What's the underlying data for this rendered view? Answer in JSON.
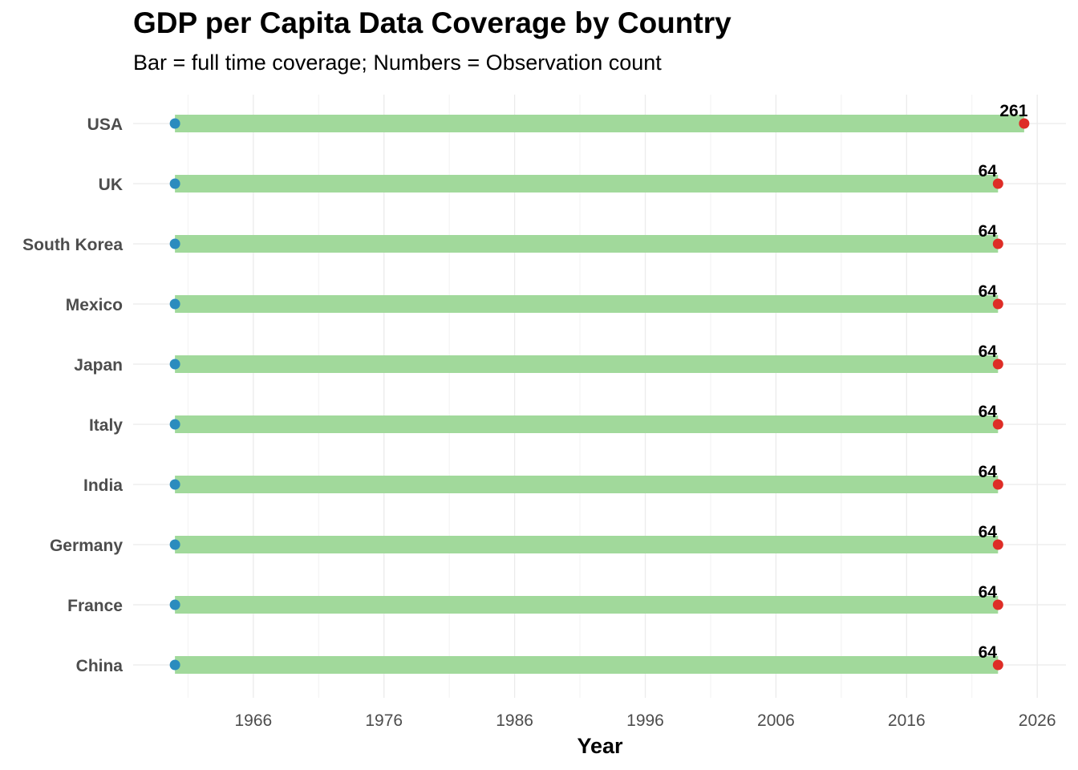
{
  "chart_data": {
    "type": "bar",
    "title": "GDP per Capita Data Coverage by Country",
    "subtitle": "Bar = full time coverage; Numbers = Observation count",
    "xlabel": "Year",
    "ylabel": "",
    "xlim": [
      1956.8,
      2028.2
    ],
    "x_ticks": [
      1966,
      1976,
      1986,
      1996,
      2006,
      2016,
      2026
    ],
    "grid": true,
    "legend": "none",
    "colors": {
      "bar": "#a1d99b",
      "start_point": "#2b8cbe",
      "end_point": "#de2d26",
      "grid": "#ebebeb"
    },
    "series": [
      {
        "country": "USA",
        "start": 1960.0,
        "end": 2025.0,
        "count": "261"
      },
      {
        "country": "UK",
        "start": 1960.0,
        "end": 2023.0,
        "count": "64"
      },
      {
        "country": "South Korea",
        "start": 1960.0,
        "end": 2023.0,
        "count": "64"
      },
      {
        "country": "Mexico",
        "start": 1960.0,
        "end": 2023.0,
        "count": "64"
      },
      {
        "country": "Japan",
        "start": 1960.0,
        "end": 2023.0,
        "count": "64"
      },
      {
        "country": "Italy",
        "start": 1960.0,
        "end": 2023.0,
        "count": "64"
      },
      {
        "country": "India",
        "start": 1960.0,
        "end": 2023.0,
        "count": "64"
      },
      {
        "country": "Germany",
        "start": 1960.0,
        "end": 2023.0,
        "count": "64"
      },
      {
        "country": "France",
        "start": 1960.0,
        "end": 2023.0,
        "count": "64"
      },
      {
        "country": "China",
        "start": 1960.0,
        "end": 2023.0,
        "count": "64"
      }
    ]
  }
}
